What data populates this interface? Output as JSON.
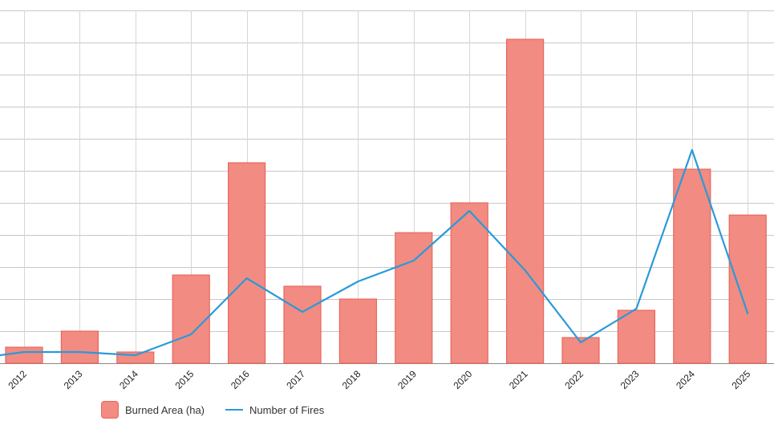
{
  "chart_data": {
    "type": "bar",
    "categories": [
      "2012",
      "2013",
      "2014",
      "2015",
      "2016",
      "2017",
      "2018",
      "2019",
      "2020",
      "2021",
      "2022",
      "2023",
      "2024",
      "2025"
    ],
    "series": [
      {
        "name": "Burned Area (ha)",
        "type": "bar",
        "color": "#f28b82",
        "border_color": "#e8675d",
        "values": [
          0.5,
          1.0,
          0.35,
          2.75,
          6.25,
          2.4,
          2.0,
          4.07,
          5.0,
          10.1,
          0.8,
          1.65,
          6.05,
          4.62
        ]
      },
      {
        "name": "Number of Fires",
        "type": "line",
        "color": "#2a9ad8",
        "values": [
          0.35,
          0.35,
          0.25,
          0.9,
          2.65,
          1.6,
          2.55,
          3.2,
          4.75,
          2.9,
          0.65,
          1.7,
          6.65,
          1.55
        ]
      }
    ],
    "line_start_value": 0.25,
    "ylim": [
      0,
      11
    ],
    "ytick_step": 1,
    "y_tick_labels_visible": false,
    "grid": true,
    "legend_position": "bottom-left"
  }
}
